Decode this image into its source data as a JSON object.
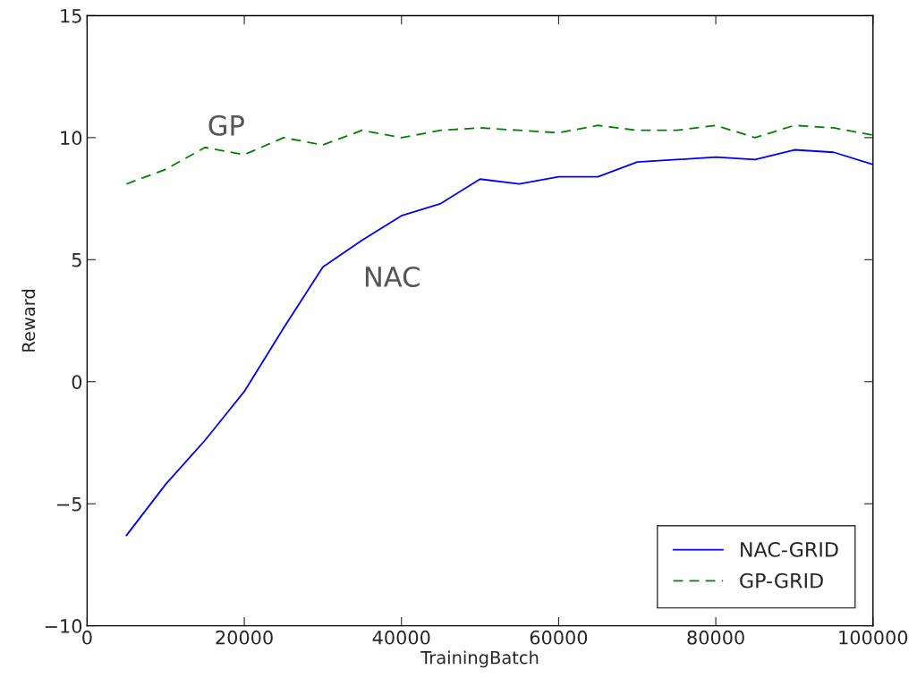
{
  "chart_data": {
    "type": "line",
    "xlabel": "TrainingBatch",
    "ylabel": "Reward",
    "x": [
      5000,
      10000,
      15000,
      20000,
      25000,
      30000,
      35000,
      40000,
      45000,
      50000,
      55000,
      60000,
      65000,
      70000,
      75000,
      80000,
      85000,
      90000,
      95000,
      100000
    ],
    "series": [
      {
        "name": "NAC-GRID",
        "color": "#0000ff",
        "line_style": "solid",
        "values": [
          -6.3,
          -4.2,
          -2.4,
          -0.4,
          2.2,
          4.7,
          5.8,
          6.8,
          7.3,
          8.3,
          8.1,
          8.4,
          8.4,
          9.0,
          9.1,
          9.2,
          9.1,
          9.5,
          9.4,
          8.9
        ]
      },
      {
        "name": "GP-GRID",
        "color": "#008000",
        "line_style": "dashed",
        "values": [
          8.1,
          8.7,
          9.6,
          9.3,
          10.0,
          9.7,
          10.3,
          10.0,
          10.3,
          10.4,
          10.3,
          10.2,
          10.5,
          10.3,
          10.3,
          10.5,
          10.0,
          10.5,
          10.4,
          10.1
        ]
      }
    ],
    "annotations": [
      "GP",
      "NAC"
    ],
    "xlim": [
      0,
      100000
    ],
    "xticks": [
      0,
      20000,
      40000,
      60000,
      80000,
      100000
    ],
    "ylim": [
      -10,
      15
    ],
    "yticks": [
      -10,
      -5,
      0,
      5,
      10,
      15
    ],
    "grid": false,
    "legend": "bottom right",
    "marker": "none"
  }
}
